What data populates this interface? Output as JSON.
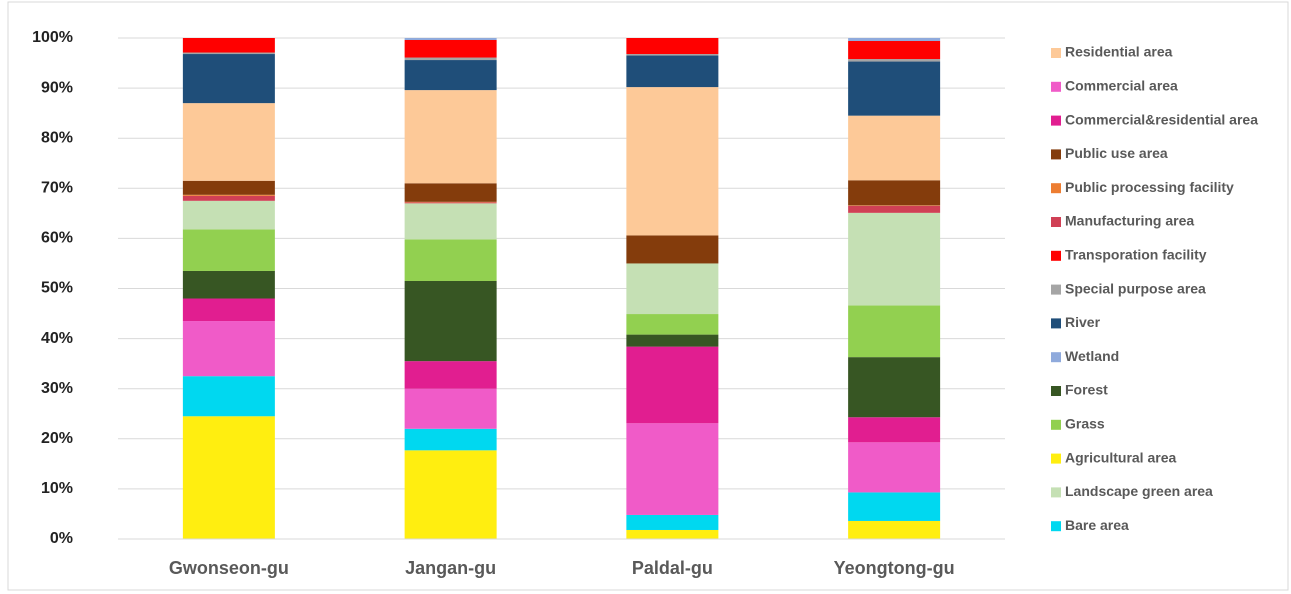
{
  "chart_data": {
    "type": "stacked_bar",
    "categories": [
      "Gwonseon-gu",
      "Jangan-gu",
      "Paldal-gu",
      "Yeongtong-gu"
    ],
    "ylim": [
      0,
      100
    ],
    "yticks": [
      {
        "value": 0,
        "label": "0%"
      },
      {
        "value": 10,
        "label": "10%"
      },
      {
        "value": 20,
        "label": "20%"
      },
      {
        "value": 30,
        "label": "30%"
      },
      {
        "value": 40,
        "label": "40%"
      },
      {
        "value": 50,
        "label": "50%"
      },
      {
        "value": 60,
        "label": "60%"
      },
      {
        "value": 70,
        "label": "70%"
      },
      {
        "value": 80,
        "label": "80%"
      },
      {
        "value": 90,
        "label": "90%"
      },
      {
        "value": 100,
        "label": "100%"
      }
    ],
    "grid": true,
    "legend": "right",
    "series": [
      {
        "name": "Residential area",
        "color": "#fdc998",
        "values": [
          15.5,
          18.6,
          29.6,
          12.9
        ]
      },
      {
        "name": "Commercial area",
        "color": "#f05bc8",
        "values": [
          11,
          8,
          18.3,
          10
        ]
      },
      {
        "name": "Commercial&residential area",
        "color": "#e11e90",
        "values": [
          4.5,
          5.5,
          15.3,
          5
        ]
      },
      {
        "name": "Public use area",
        "color": "#843c0c",
        "values": [
          2.8,
          3.7,
          5.6,
          5
        ]
      },
      {
        "name": "Public processing facility",
        "color": "#ed7d31",
        "values": [
          0.2,
          0.1,
          0,
          0.1
        ]
      },
      {
        "name": "Manufacturing area",
        "color": "#d04055",
        "values": [
          1,
          0.2,
          0,
          1.4
        ]
      },
      {
        "name": "Transporation facility",
        "color": "#ff0000",
        "values": [
          2.9,
          3.5,
          3.2,
          3.6
        ]
      },
      {
        "name": "Special purpose area",
        "color": "#a5a5a5",
        "values": [
          0.3,
          0.5,
          0.3,
          0.5
        ]
      },
      {
        "name": "River",
        "color": "#1f4e79",
        "values": [
          9.8,
          6,
          6.3,
          10.8
        ]
      },
      {
        "name": "Wetland",
        "color": "#8faadc",
        "values": [
          0,
          0.4,
          0,
          0.6
        ]
      },
      {
        "name": "Forest",
        "color": "#375623",
        "values": [
          5.5,
          16,
          2.4,
          12
        ]
      },
      {
        "name": "Grass",
        "color": "#92d050",
        "values": [
          8.3,
          8.3,
          4.1,
          10.3
        ]
      },
      {
        "name": "Agricultural area",
        "color": "#ffee10",
        "values": [
          24.5,
          17.7,
          1.8,
          3.6
        ]
      },
      {
        "name": "Landscape green area",
        "color": "#c5e0b4",
        "values": [
          5.7,
          7.2,
          10.1,
          18.5
        ]
      },
      {
        "name": "Bare area",
        "color": "#00d8f0",
        "values": [
          8,
          4.3,
          3,
          5.7
        ]
      }
    ]
  }
}
